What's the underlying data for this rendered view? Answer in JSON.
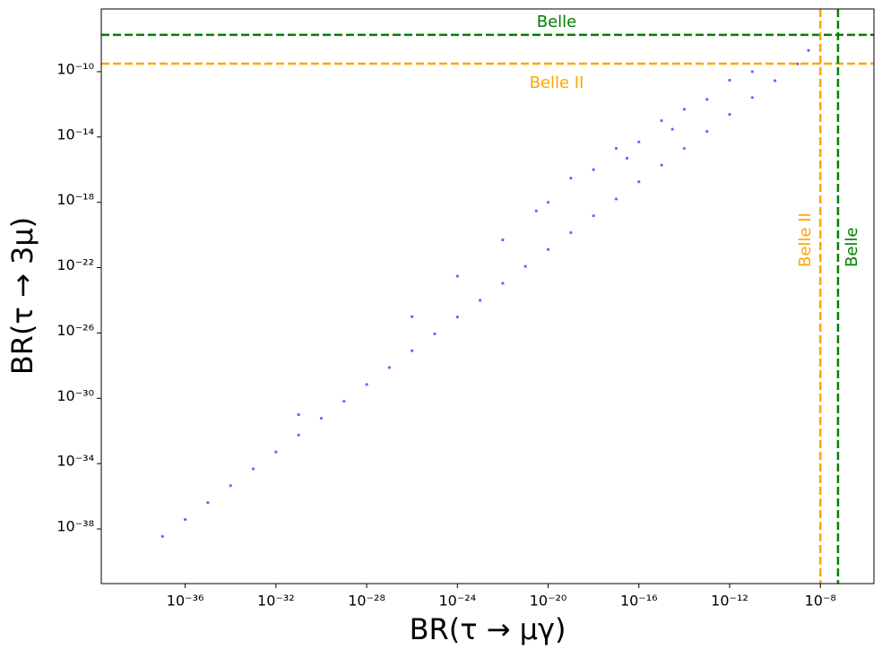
{
  "chart_data": {
    "type": "scatter",
    "xlabel": "BR(τ → μγ)",
    "ylabel": "BR(τ → 3μ)",
    "xscale": "log",
    "yscale": "log",
    "xlim": [
      2e-40,
      2.3e-06
    ],
    "ylim": [
      4.5e-42,
      6.9e-07
    ],
    "xticks": [
      {
        "value": 1e-36,
        "label": "10⁻³⁶"
      },
      {
        "value": 1e-32,
        "label": "10⁻³²"
      },
      {
        "value": 1e-28,
        "label": "10⁻²⁸"
      },
      {
        "value": 1e-24,
        "label": "10⁻²⁴"
      },
      {
        "value": 1e-20,
        "label": "10⁻²⁰"
      },
      {
        "value": 1e-16,
        "label": "10⁻¹⁶"
      },
      {
        "value": 1e-12,
        "label": "10⁻¹²"
      },
      {
        "value": 1e-08,
        "label": "10⁻⁸"
      }
    ],
    "yticks": [
      {
        "value": 1e-38,
        "label": "10⁻³⁸"
      },
      {
        "value": 1e-34,
        "label": "10⁻³⁴"
      },
      {
        "value": 1e-30,
        "label": "10⁻³⁰"
      },
      {
        "value": 1e-26,
        "label": "10⁻²⁶"
      },
      {
        "value": 1e-22,
        "label": "10⁻²²"
      },
      {
        "value": 1e-18,
        "label": "10⁻¹⁸"
      },
      {
        "value": 1e-14,
        "label": "10⁻¹⁴"
      },
      {
        "value": 1e-10,
        "label": "10⁻¹⁰"
      }
    ],
    "series": [
      {
        "color": "#0000ff",
        "x": [
          1e-37,
          1e-36,
          1e-35,
          1e-34,
          1e-33,
          1e-32,
          1e-31,
          1e-30,
          1e-29,
          1e-28,
          1e-27,
          1e-26,
          1e-25,
          1e-24,
          1e-23,
          1e-22,
          1e-21,
          1e-20,
          1e-19,
          1e-18,
          1e-17,
          1e-16,
          1e-15,
          1e-14,
          1e-13,
          1e-12,
          1e-11,
          1e-10,
          1e-09,
          1e-26,
          1e-24,
          1e-22,
          1e-20,
          1e-19,
          1e-18,
          1e-17,
          1e-16,
          1e-15,
          1e-14,
          1e-13,
          1e-12,
          1e-11,
          3e-21,
          3e-17,
          3e-15,
          3e-09,
          1e-31
        ],
        "y": [
          3.5e-39,
          3.8e-38,
          4.1e-37,
          4.5e-36,
          4.8e-35,
          5.2e-34,
          5.6e-33,
          6e-32,
          6.5e-31,
          7e-30,
          7.6e-29,
          8.2e-28,
          8.8e-27,
          9.5e-26,
          1e-24,
          1.1e-23,
          1.2e-22,
          1.3e-21,
          1.4e-20,
          1.5e-19,
          1.6e-18,
          1.8e-17,
          1.9e-16,
          2e-15,
          2.2e-14,
          2.4e-13,
          2.6e-12,
          2.8e-11,
          3e-10,
          1e-25,
          3e-23,
          5e-21,
          1e-18,
          3e-17,
          1e-16,
          2e-15,
          5e-15,
          1e-13,
          5e-13,
          2e-12,
          3e-11,
          1e-10,
          3e-19,
          5e-16,
          3e-14,
          2e-09,
          1e-31
        ]
      }
    ],
    "hlines": [
      {
        "value": 1.8e-08,
        "label": "Belle",
        "color": "#008000"
      },
      {
        "value": 3.1e-10,
        "label": "Belle II",
        "color": "#ffa500"
      }
    ],
    "vlines": [
      {
        "value": 1e-08,
        "label": "Belle II",
        "color": "#ffa500"
      },
      {
        "value": 6e-08,
        "label": "Belle",
        "color": "#008000"
      }
    ]
  }
}
